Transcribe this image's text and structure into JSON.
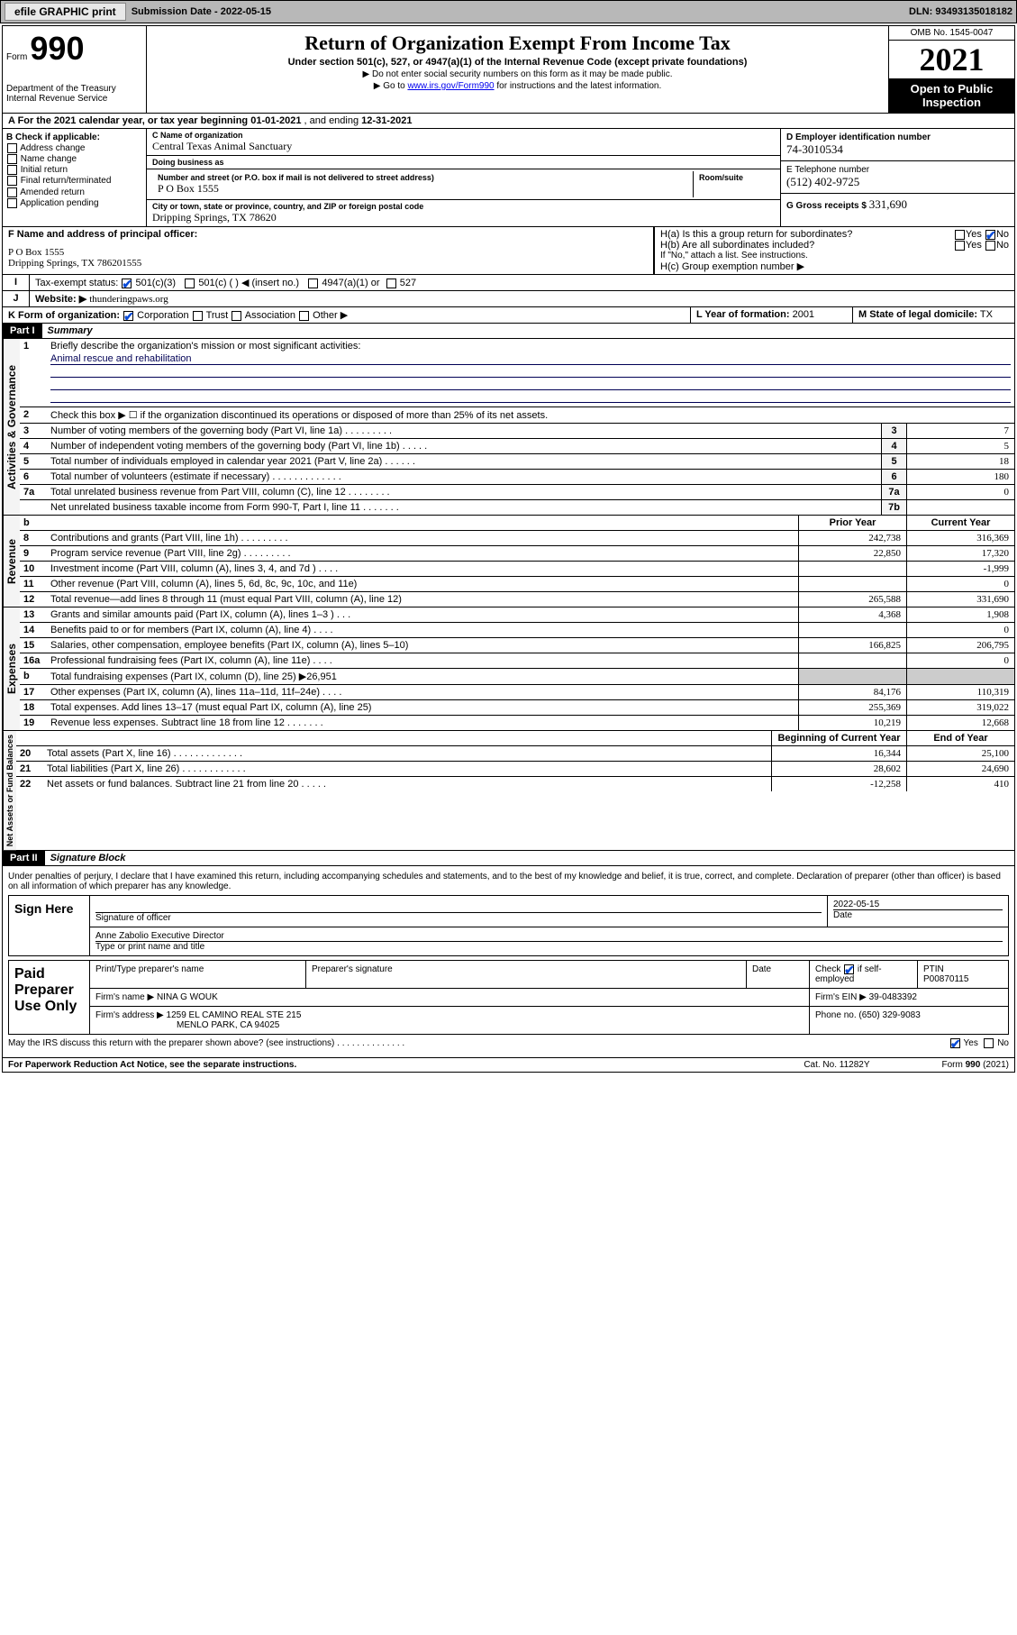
{
  "toolbar": {
    "efile_label": "efile GRAPHIC print",
    "sub_date_label": "Submission Date - 2022-05-15",
    "dln_label": "DLN: 93493135018182"
  },
  "header": {
    "form_label": "Form",
    "form_number": "990",
    "title": "Return of Organization Exempt From Income Tax",
    "subtitle1": "Under section 501(c), 527, or 4947(a)(1) of the Internal Revenue Code (except private foundations)",
    "subtitle2": "▶ Do not enter social security numbers on this form as it may be made public.",
    "subtitle3_pre": "▶ Go to ",
    "subtitle3_link": "www.irs.gov/Form990",
    "subtitle3_post": " for instructions and the latest information.",
    "omb": "OMB No. 1545-0047",
    "year": "2021",
    "open_pub": "Open to Public Inspection",
    "dept": "Department of the Treasury",
    "irs": "Internal Revenue Service"
  },
  "block_a": {
    "text_pre": "A For the 2021 calendar year, or tax year beginning ",
    "begin": "01-01-2021",
    "mid": " , and ending ",
    "end": "12-31-2021"
  },
  "block_b": {
    "label": "B Check if applicable:",
    "opts": [
      "Address change",
      "Name change",
      "Initial return",
      "Final return/terminated",
      "Amended return",
      "Application pending"
    ]
  },
  "block_c": {
    "name_lbl": "C Name of organization",
    "name": "Central Texas Animal Sanctuary",
    "dba_lbl": "Doing business as",
    "dba": "",
    "addr_lbl": "Number and street (or P.O. box if mail is not delivered to street address)",
    "room_lbl": "Room/suite",
    "addr": "P O Box 1555",
    "city_lbl": "City or town, state or province, country, and ZIP or foreign postal code",
    "city": "Dripping Springs, TX  78620"
  },
  "block_de": {
    "d_lbl": "D Employer identification number",
    "ein": "74-3010534",
    "e_lbl": "E Telephone number",
    "phone": "(512) 402-9725",
    "g_lbl": "G Gross receipts $",
    "gross": "331,690"
  },
  "block_f": {
    "lbl": "F Name and address of principal officer:",
    "line1": "P O Box 1555",
    "line2": "Dripping Springs, TX  786201555"
  },
  "block_h": {
    "ha": "H(a)  Is this a group return for subordinates?",
    "hb": "H(b)  Are all subordinates included?",
    "hb_note": "If \"No,\" attach a list. See instructions.",
    "hc": "H(c)  Group exemption number ▶"
  },
  "row_i": {
    "lbl": "Tax-exempt status:",
    "opt1": "501(c)(3)",
    "opt2": "501(c) (  ) ◀ (insert no.)",
    "opt3": "4947(a)(1) or",
    "opt4": "527"
  },
  "row_j": {
    "lbl": "Website: ▶",
    "val": "thunderingpaws.org"
  },
  "row_k": {
    "lbl": "K Form of organization:",
    "opts": [
      "Corporation",
      "Trust",
      "Association",
      "Other ▶"
    ]
  },
  "row_lm": {
    "l_lbl": "L Year of formation:",
    "l_val": "2001",
    "m_lbl": "M State of legal domicile:",
    "m_val": "TX"
  },
  "part1": {
    "hdr": "Part I",
    "title": "Summary",
    "q1_lbl": "Briefly describe the organization's mission or most significant activities:",
    "q1_val": "Animal rescue and rehabilitation",
    "q2": "Check this box ▶ ☐  if the organization discontinued its operations or disposed of more than 25% of its net assets.",
    "lines_gov": [
      {
        "n": "3",
        "d": "Number of voting members of the governing body (Part VI, line 1a)  .   .   .   .   .   .   .   .   .",
        "b": "3",
        "v": "7"
      },
      {
        "n": "4",
        "d": "Number of independent voting members of the governing body (Part VI, line 1b)   .   .   .   .   .",
        "b": "4",
        "v": "5"
      },
      {
        "n": "5",
        "d": "Total number of individuals employed in calendar year 2021 (Part V, line 2a)   .   .   .   .   .   .",
        "b": "5",
        "v": "18"
      },
      {
        "n": "6",
        "d": "Total number of volunteers (estimate if necessary)   .   .   .   .   .   .   .   .   .   .   .   .   .",
        "b": "6",
        "v": "180"
      },
      {
        "n": "7a",
        "d": "Total unrelated business revenue from Part VIII, column (C), line 12   .   .   .   .   .   .   .   .",
        "b": "7a",
        "v": "0"
      },
      {
        "n": "",
        "d": "Net unrelated business taxable income from Form 990-T, Part I, line 11   .   .   .   .   .   .   .",
        "b": "7b",
        "v": ""
      }
    ],
    "col_hdr": {
      "b": "b",
      "py": "Prior Year",
      "cy": "Current Year"
    },
    "lines_rev": [
      {
        "n": "8",
        "d": "Contributions and grants (Part VIII, line 1h)   .   .   .   .   .   .   .   .   .",
        "py": "242,738",
        "cy": "316,369"
      },
      {
        "n": "9",
        "d": "Program service revenue (Part VIII, line 2g)   .   .   .   .   .   .   .   .   .",
        "py": "22,850",
        "cy": "17,320"
      },
      {
        "n": "10",
        "d": "Investment income (Part VIII, column (A), lines 3, 4, and 7d )   .   .   .   .",
        "py": "",
        "cy": "-1,999"
      },
      {
        "n": "11",
        "d": "Other revenue (Part VIII, column (A), lines 5, 6d, 8c, 9c, 10c, and 11e)",
        "py": "",
        "cy": "0"
      },
      {
        "n": "12",
        "d": "Total revenue—add lines 8 through 11 (must equal Part VIII, column (A), line 12)",
        "py": "265,588",
        "cy": "331,690"
      }
    ],
    "lines_exp": [
      {
        "n": "13",
        "d": "Grants and similar amounts paid (Part IX, column (A), lines 1–3 )   .   .   .",
        "py": "4,368",
        "cy": "1,908"
      },
      {
        "n": "14",
        "d": "Benefits paid to or for members (Part IX, column (A), line 4)   .   .   .   .",
        "py": "",
        "cy": "0"
      },
      {
        "n": "15",
        "d": "Salaries, other compensation, employee benefits (Part IX, column (A), lines 5–10)",
        "py": "166,825",
        "cy": "206,795"
      },
      {
        "n": "16a",
        "d": "Professional fundraising fees (Part IX, column (A), line 11e)   .   .   .   .",
        "py": "",
        "cy": "0"
      },
      {
        "n": "b",
        "d": "Total fundraising expenses (Part IX, column (D), line 25) ▶26,951",
        "py": "grey",
        "cy": "grey"
      },
      {
        "n": "17",
        "d": "Other expenses (Part IX, column (A), lines 11a–11d, 11f–24e)   .   .   .   .",
        "py": "84,176",
        "cy": "110,319"
      },
      {
        "n": "18",
        "d": "Total expenses. Add lines 13–17 (must equal Part IX, column (A), line 25)",
        "py": "255,369",
        "cy": "319,022"
      },
      {
        "n": "19",
        "d": "Revenue less expenses. Subtract line 18 from line 12   .   .   .   .   .   .   .",
        "py": "10,219",
        "cy": "12,668"
      }
    ],
    "col_hdr2": {
      "py": "Beginning of Current Year",
      "cy": "End of Year"
    },
    "lines_net": [
      {
        "n": "20",
        "d": "Total assets (Part X, line 16)   .   .   .   .   .   .   .   .   .   .   .   .   .",
        "py": "16,344",
        "cy": "25,100"
      },
      {
        "n": "21",
        "d": "Total liabilities (Part X, line 26)   .   .   .   .   .   .   .   .   .   .   .   .",
        "py": "28,602",
        "cy": "24,690"
      },
      {
        "n": "22",
        "d": "Net assets or fund balances. Subtract line 21 from line 20   .   .   .   .   .",
        "py": "-12,258",
        "cy": "410"
      }
    ],
    "vtab_gov": "Activities & Governance",
    "vtab_rev": "Revenue",
    "vtab_exp": "Expenses",
    "vtab_net": "Net Assets or Fund Balances"
  },
  "part2": {
    "hdr": "Part II",
    "title": "Signature Block",
    "decl": "Under penalties of perjury, I declare that I have examined this return, including accompanying schedules and statements, and to the best of my knowledge and belief, it is true, correct, and complete. Declaration of preparer (other than officer) is based on all information of which preparer has any knowledge.",
    "sign_here": "Sign Here",
    "sig_officer": "Signature of officer",
    "sig_date": "2022-05-15",
    "sig_date_lbl": "Date",
    "officer_name": "Anne Zabolio  Executive Director",
    "type_name": "Type or print name and title",
    "paid_prep": "Paid Preparer Use Only",
    "prep_name_lbl": "Print/Type preparer's name",
    "prep_sig_lbl": "Preparer's signature",
    "date_lbl": "Date",
    "check_if": "Check",
    "self_emp": "if self-employed",
    "ptin_lbl": "PTIN",
    "ptin": "P00870115",
    "firm_name_lbl": "Firm's name   ▶",
    "firm_name": "NINA G WOUK",
    "firm_ein_lbl": "Firm's EIN ▶",
    "firm_ein": "39-0483392",
    "firm_addr_lbl": "Firm's address ▶",
    "firm_addr1": "1259 EL CAMINO REAL STE 215",
    "firm_addr2": "MENLO PARK, CA  94025",
    "phone_lbl": "Phone no.",
    "phone": "(650) 329-9083",
    "may_irs": "May the IRS discuss this return with the preparer shown above? (see instructions)   .   .   .   .   .   .   .   .   .   .   .   .   .   .",
    "yes": "Yes",
    "no": "No"
  },
  "footer": {
    "pra": "For Paperwork Reduction Act Notice, see the separate instructions.",
    "cat": "Cat. No. 11282Y",
    "form": "Form 990 (2021)"
  },
  "yes": "Yes",
  "no": "No"
}
